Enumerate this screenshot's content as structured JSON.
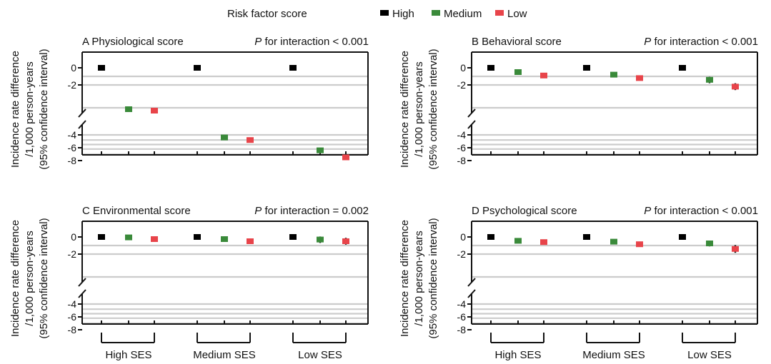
{
  "legend": {
    "title": "Risk factor score",
    "items": [
      {
        "key": "high",
        "label": "High",
        "color": "#000000"
      },
      {
        "key": "medium",
        "label": "Medium",
        "color": "#3a8a3a"
      },
      {
        "key": "low",
        "label": "Low",
        "color": "#e8444a"
      }
    ]
  },
  "ylabel_lines": [
    "Incidence rate difference",
    "/1,000 person-years",
    "(95% confidence interval)"
  ],
  "categories": [
    "High SES",
    "Medium SES",
    "Low SES"
  ],
  "chart_data": [
    {
      "type": "scatter",
      "panel_letter": "A",
      "title": "Physiological score",
      "interaction_label_p": "P",
      "interaction_text": "for interaction < 0.001",
      "yticks": [
        0,
        -2,
        -4,
        -6,
        -8
      ],
      "axis_break": "between -2 and -4",
      "grid": true,
      "series": [
        {
          "name": "High",
          "values": [
            0,
            0,
            0
          ],
          "ci": [
            [
              0,
              0
            ],
            [
              0,
              0
            ],
            [
              0,
              0
            ]
          ]
        },
        {
          "name": "Medium",
          "values": [
            -3.7,
            -4.4,
            -6.4
          ],
          "ci": [
            [
              -3.8,
              -3.6
            ],
            [
              -4.5,
              -4.3
            ],
            [
              -6.5,
              -6.3
            ]
          ]
        },
        {
          "name": "Low",
          "values": [
            -3.8,
            -4.8,
            -7.5
          ],
          "ci": [
            [
              -3.9,
              -3.7
            ],
            [
              -4.9,
              -4.7
            ],
            [
              -7.6,
              -7.4
            ]
          ]
        }
      ]
    },
    {
      "type": "scatter",
      "panel_letter": "B",
      "title": "Behavioral score",
      "interaction_label_p": "P",
      "interaction_text": "for interaction < 0.001",
      "yticks": [
        0,
        -2,
        -4,
        -6,
        -8
      ],
      "axis_break": "between -2 and -4",
      "grid": true,
      "series": [
        {
          "name": "High",
          "values": [
            0,
            0,
            0
          ],
          "ci": [
            [
              0,
              0
            ],
            [
              0,
              0
            ],
            [
              0,
              0
            ]
          ]
        },
        {
          "name": "Medium",
          "values": [
            -0.5,
            -0.8,
            -1.4
          ],
          "ci": [
            [
              -0.75,
              -0.25
            ],
            [
              -0.95,
              -0.6
            ],
            [
              -1.8,
              -1.05
            ]
          ]
        },
        {
          "name": "Low",
          "values": [
            -0.9,
            -1.2,
            -2.2
          ],
          "ci": [
            [
              -1.1,
              -0.7
            ],
            [
              -1.4,
              -1.05
            ],
            [
              -2.6,
              -1.8
            ]
          ]
        }
      ]
    },
    {
      "type": "scatter",
      "panel_letter": "C",
      "title": "Environmental score",
      "interaction_label_p": "P",
      "interaction_text": "for interaction = 0.002",
      "yticks": [
        0,
        -2,
        -4,
        -6,
        -8
      ],
      "axis_break": "between -2 and -4",
      "grid": true,
      "series": [
        {
          "name": "High",
          "values": [
            0,
            0,
            0
          ],
          "ci": [
            [
              0,
              0
            ],
            [
              0,
              0
            ],
            [
              0,
              0
            ]
          ]
        },
        {
          "name": "Medium",
          "values": [
            -0.05,
            -0.25,
            -0.3
          ],
          "ci": [
            [
              -0.25,
              0.12
            ],
            [
              -0.38,
              -0.12
            ],
            [
              -0.7,
              0.05
            ]
          ]
        },
        {
          "name": "Low",
          "values": [
            -0.25,
            -0.5,
            -0.5
          ],
          "ci": [
            [
              -0.42,
              -0.1
            ],
            [
              -0.65,
              -0.35
            ],
            [
              -0.9,
              -0.1
            ]
          ]
        }
      ]
    },
    {
      "type": "scatter",
      "panel_letter": "D",
      "title": "Psychological score",
      "interaction_label_p": "P",
      "interaction_text": "for interaction < 0.001",
      "yticks": [
        0,
        -2,
        -4,
        -6,
        -8
      ],
      "axis_break": "between -2 and -4",
      "grid": true,
      "series": [
        {
          "name": "High",
          "values": [
            0,
            0,
            0
          ],
          "ci": [
            [
              0,
              0
            ],
            [
              0,
              0
            ],
            [
              0,
              0
            ]
          ]
        },
        {
          "name": "Medium",
          "values": [
            -0.45,
            -0.55,
            -0.75
          ],
          "ci": [
            [
              -0.75,
              -0.15
            ],
            [
              -0.7,
              -0.4
            ],
            [
              -1.1,
              -0.45
            ]
          ]
        },
        {
          "name": "Low",
          "values": [
            -0.6,
            -0.85,
            -1.4
          ],
          "ci": [
            [
              -0.9,
              -0.3
            ],
            [
              -1.05,
              -0.65
            ],
            [
              -1.85,
              -0.95
            ]
          ]
        }
      ]
    }
  ]
}
